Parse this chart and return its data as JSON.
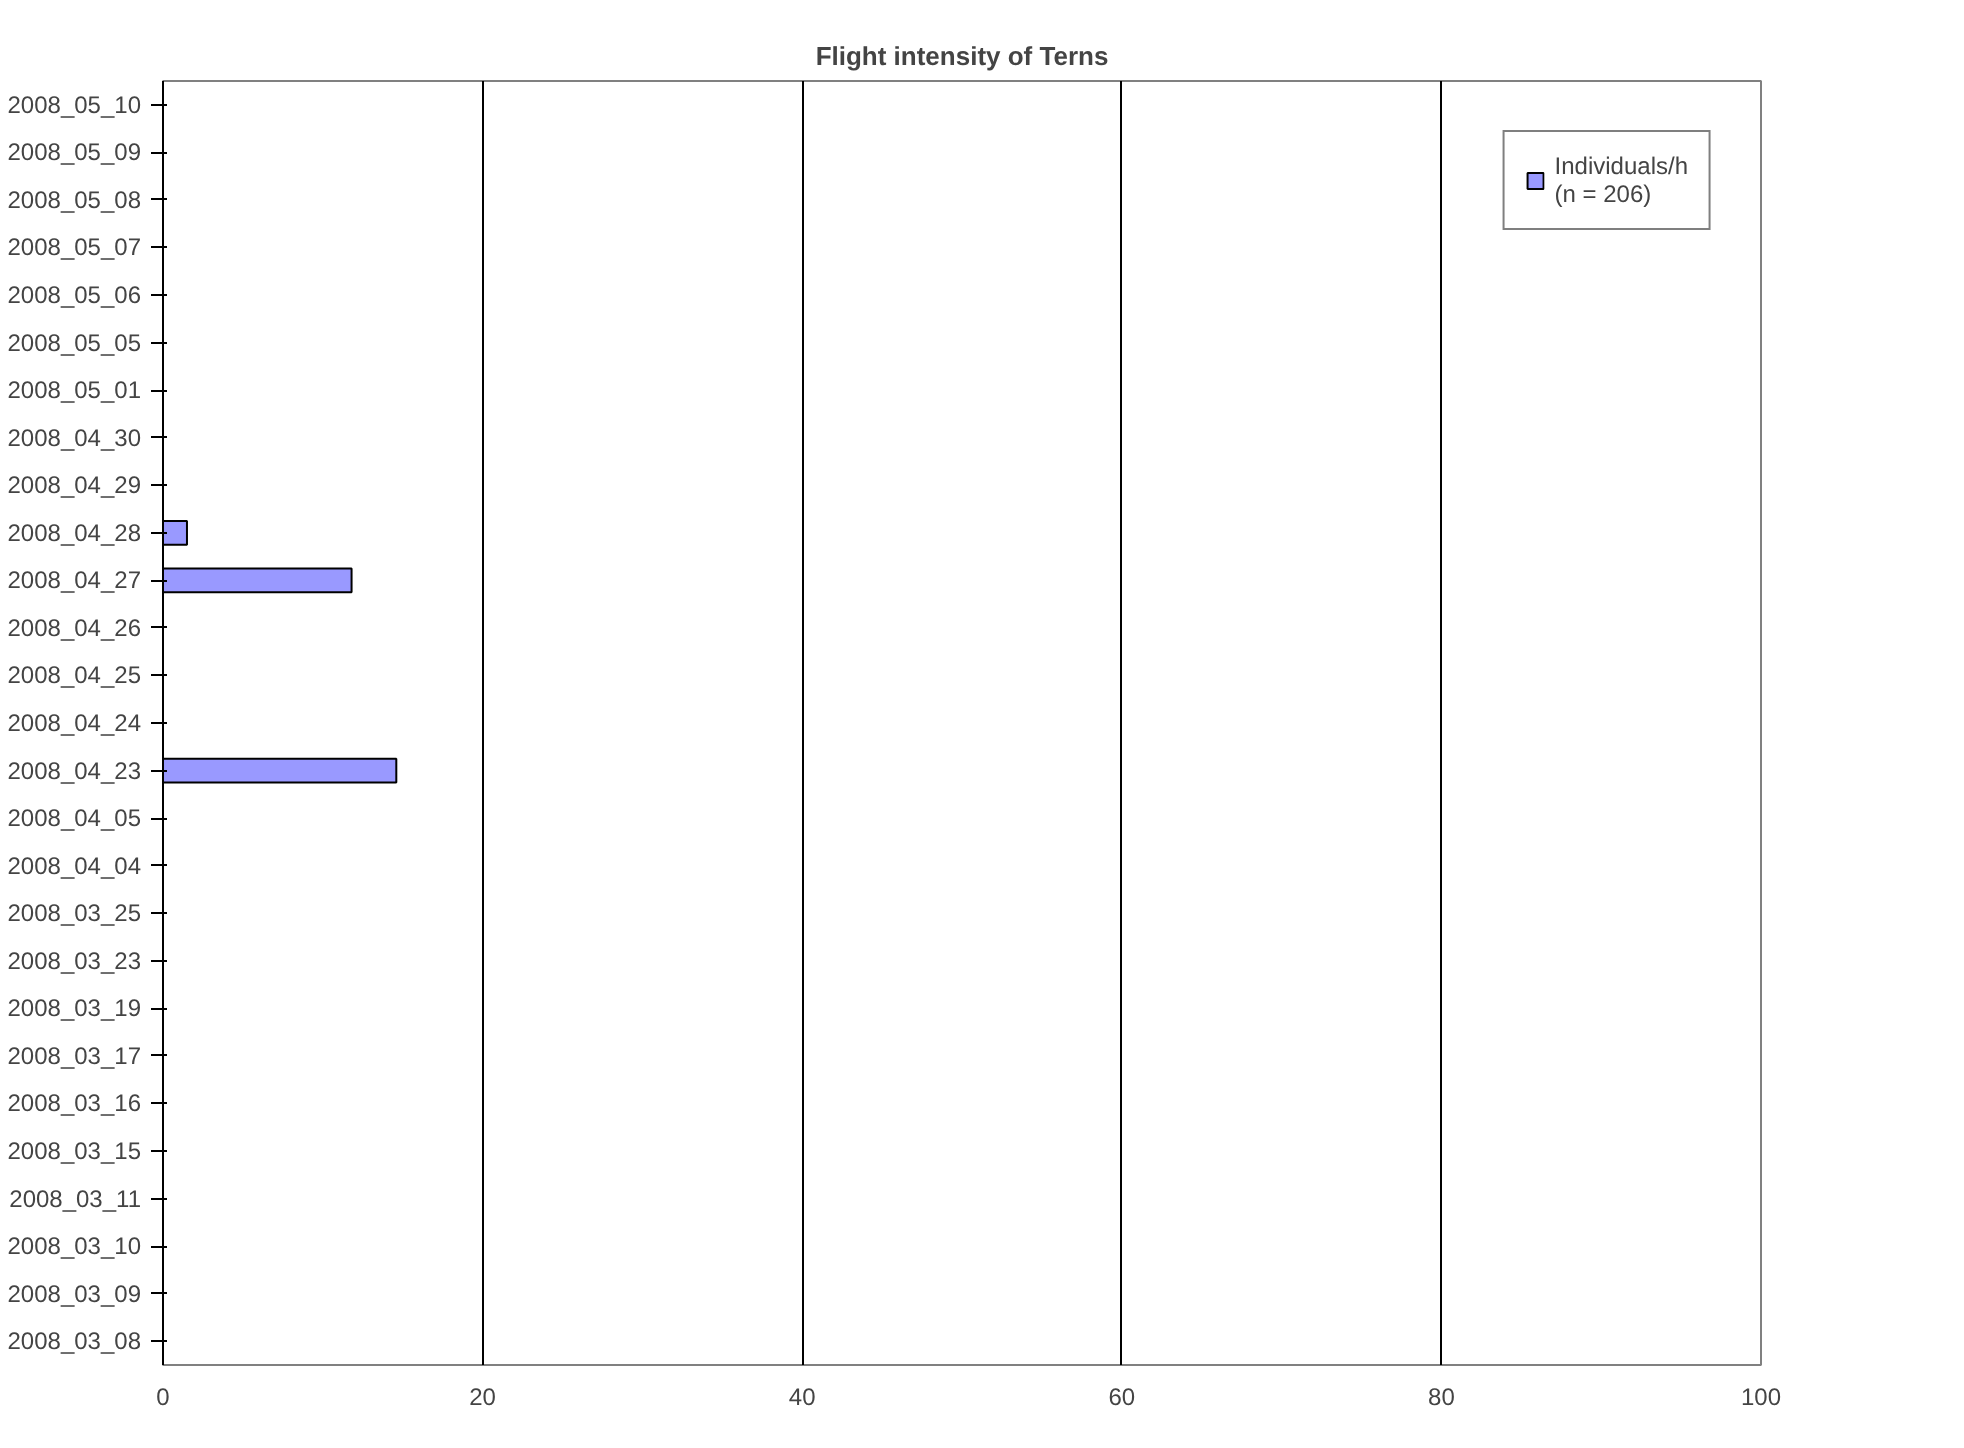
{
  "chart_data": {
    "type": "bar",
    "orientation": "horizontal",
    "title": "Flight intensity of Terns",
    "categories": [
      "2008_05_10",
      "2008_05_09",
      "2008_05_08",
      "2008_05_07",
      "2008_05_06",
      "2008_05_05",
      "2008_05_01",
      "2008_04_30",
      "2008_04_29",
      "2008_04_28",
      "2008_04_27",
      "2008_04_26",
      "2008_04_25",
      "2008_04_24",
      "2008_04_23",
      "2008_04_05",
      "2008_04_04",
      "2008_03_25",
      "2008_03_23",
      "2008_03_19",
      "2008_03_17",
      "2008_03_16",
      "2008_03_15",
      "2008_03_11",
      "2008_03_10",
      "2008_03_09",
      "2008_03_08"
    ],
    "series": [
      {
        "name": "Individuals/h\n(n = 206)",
        "color": "#9999ff",
        "values": [
          null,
          null,
          null,
          null,
          null,
          null,
          null,
          null,
          null,
          1.5,
          11.8,
          null,
          null,
          null,
          14.6,
          null,
          null,
          null,
          null,
          null,
          null,
          null,
          null,
          null,
          null,
          null,
          null
        ]
      }
    ],
    "xlim": [
      0,
      100
    ],
    "xticks": [
      0,
      20,
      40,
      60,
      80,
      100
    ],
    "grid": "x",
    "legend": "top right"
  }
}
